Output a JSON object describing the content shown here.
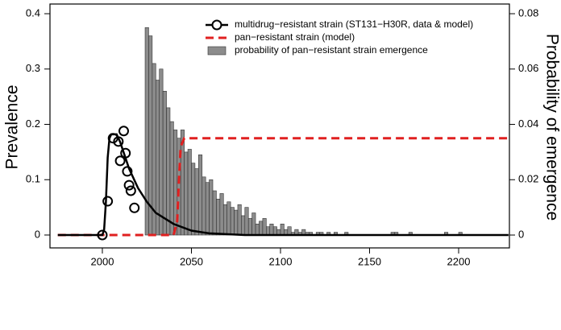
{
  "chart_data": {
    "type": "combo",
    "y_label": "Prevalence",
    "y2_label": "Probability of emergence",
    "xlim": [
      1970.6,
      2228.5
    ],
    "xticks": [
      2000,
      2050,
      2100,
      2150,
      2200
    ],
    "ylim": [
      -0.0233,
      0.4175
    ],
    "yticks": [
      0,
      0.1,
      0.2,
      0.3,
      0.4
    ],
    "y2lim": [
      -0.00465,
      0.0835
    ],
    "y2ticks": [
      0,
      0.02,
      0.04,
      0.06,
      0.08
    ],
    "legend": "top-right",
    "series": [
      {
        "type": "histogram",
        "name": "probability of pan−resistant strain emergence",
        "color": "#8c8c8c",
        "axis": "y2",
        "bins": [
          2024,
          2026,
          2028,
          2030,
          2032,
          2034,
          2036,
          2038,
          2040,
          2042,
          2044,
          2046,
          2048,
          2050,
          2052,
          2054,
          2056,
          2058,
          2060,
          2062,
          2064,
          2066,
          2068,
          2070,
          2072,
          2074,
          2076,
          2078,
          2080,
          2082,
          2084,
          2086,
          2088,
          2090,
          2092,
          2094,
          2096,
          2098,
          2100,
          2102,
          2104,
          2106,
          2108,
          2110,
          2112,
          2114,
          2116,
          2118,
          2120,
          2122,
          2124,
          2126,
          2128,
          2130,
          2132,
          2134,
          2136,
          2138,
          2140,
          2142,
          2144,
          2146,
          2148,
          2150,
          2152,
          2154,
          2156,
          2158,
          2160,
          2162,
          2164,
          2166,
          2168,
          2170,
          2172,
          2174,
          2176,
          2178,
          2180,
          2182,
          2184,
          2186,
          2188,
          2190,
          2192,
          2194,
          2196,
          2198,
          2200,
          2202
        ],
        "values": [
          0.075,
          0.072,
          0.062,
          0.056,
          0.06,
          0.052,
          0.046,
          0.041,
          0.038,
          0.035,
          0.038,
          0.03,
          0.031,
          0.026,
          0.024,
          0.029,
          0.021,
          0.019,
          0.02,
          0.016,
          0.013,
          0.015,
          0.011,
          0.012,
          0.01,
          0.009,
          0.011,
          0.007,
          0.01,
          0.006,
          0.008,
          0.004,
          0.005,
          0.006,
          0.003,
          0.004,
          0.003,
          0.002,
          0.004,
          0.002,
          0.003,
          0.001,
          0.002,
          0.001,
          0.002,
          0.001,
          0.001,
          0,
          0.001,
          0.001,
          0,
          0.001,
          0,
          0.001,
          0,
          0,
          0.001,
          0,
          0,
          0,
          0,
          0,
          0,
          0,
          0,
          0,
          0,
          0,
          0,
          0.001,
          0.001,
          0,
          0,
          0,
          0.001,
          0,
          0,
          0,
          0,
          0,
          0,
          0,
          0,
          0,
          0.001,
          0,
          0,
          0,
          0.001
        ]
      },
      {
        "type": "line",
        "name": "pan−resistant strain (model)",
        "color": "#e02020",
        "dash": true,
        "axis": "y2",
        "x": [
          1975,
          2040,
          2042,
          2043,
          2044,
          2046,
          2228
        ],
        "values": [
          0,
          0,
          0.005,
          0.02,
          0.032,
          0.035,
          0.035
        ]
      },
      {
        "type": "line",
        "name": "multidrug−resistant strain (ST131−H30R, data & model)",
        "color": "#000000",
        "marker": "circle",
        "x": [
          1975,
          2000,
          2001,
          2002,
          2003,
          2004,
          2005,
          2008,
          2010,
          2015,
          2020,
          2025,
          2030,
          2040,
          2050,
          2060,
          2080,
          2228
        ],
        "values": [
          0,
          0,
          0.01,
          0.06,
          0.14,
          0.175,
          0.182,
          0.182,
          0.168,
          0.12,
          0.085,
          0.06,
          0.04,
          0.02,
          0.008,
          0.003,
          0,
          0
        ]
      },
      {
        "type": "scatter",
        "color": "#000000",
        "x": [
          2000,
          2003,
          2006,
          2009,
          2010,
          2012,
          2013,
          2014,
          2015,
          2016,
          2018
        ],
        "values": [
          0,
          0.061,
          0.175,
          0.169,
          0.134,
          0.188,
          0.148,
          0.115,
          0.09,
          0.08,
          0.049
        ]
      }
    ]
  }
}
